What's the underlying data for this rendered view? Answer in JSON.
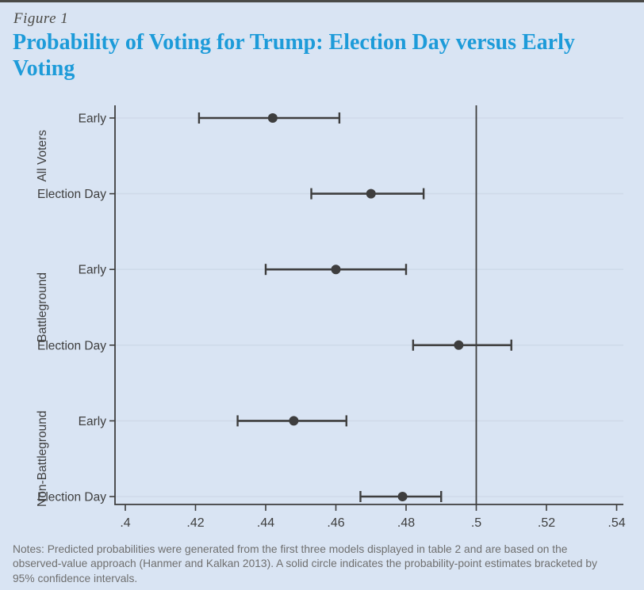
{
  "page": {
    "figure_label": "Figure 1",
    "title": "Probability of Voting for Trump: Election Day versus Early Voting",
    "notes": "Notes: Predicted probabilities were generated from the first three models displayed in table 2 and are based on the observed-value approach (Hanmer and Kalkan 2013). A solid circle indicates the probability-point estimates bracketed by 95% confidence intervals.",
    "colors": {
      "background": "#d9e4f3",
      "top_border": "#4a4a47",
      "title_blue": "#1d9bd9",
      "figure_label_gray": "#4b4a45",
      "axis_and_marker": "#3e3e3e",
      "gridline": "#cfdae9",
      "notes_gray": "#6f6f6f"
    }
  },
  "chart_data": {
    "type": "scatter",
    "subtype": "horizontal dot-and-whisker coefficient plot",
    "title": "",
    "xlabel": "",
    "ylabel": "",
    "xlim": [
      0.4,
      0.54
    ],
    "x_tick_values": [
      0.4,
      0.42,
      0.44,
      0.46,
      0.48,
      0.5,
      0.52,
      0.54
    ],
    "x_tick_labels": [
      ".4",
      ".42",
      ".44",
      ".46",
      ".48",
      ".5",
      ".52",
      ".54"
    ],
    "reference_line_x": 0.5,
    "grid": "horizontal gridlines at each row",
    "legend": "none",
    "ci_level": "95%",
    "groups": [
      "All Voters",
      "Battleground",
      "Non-Battleground"
    ],
    "rows": [
      {
        "group": "All Voters",
        "label": "Early",
        "estimate": 0.442,
        "ci_low": 0.421,
        "ci_high": 0.461
      },
      {
        "group": "All Voters",
        "label": "Election Day",
        "estimate": 0.47,
        "ci_low": 0.453,
        "ci_high": 0.485
      },
      {
        "group": "Battleground",
        "label": "Early",
        "estimate": 0.46,
        "ci_low": 0.44,
        "ci_high": 0.48
      },
      {
        "group": "Battleground",
        "label": "Election Day",
        "estimate": 0.495,
        "ci_low": 0.482,
        "ci_high": 0.51
      },
      {
        "group": "Non-Battleground",
        "label": "Early",
        "estimate": 0.448,
        "ci_low": 0.432,
        "ci_high": 0.463
      },
      {
        "group": "Non-Battleground",
        "label": "Election Day",
        "estimate": 0.479,
        "ci_low": 0.467,
        "ci_high": 0.49
      }
    ]
  }
}
